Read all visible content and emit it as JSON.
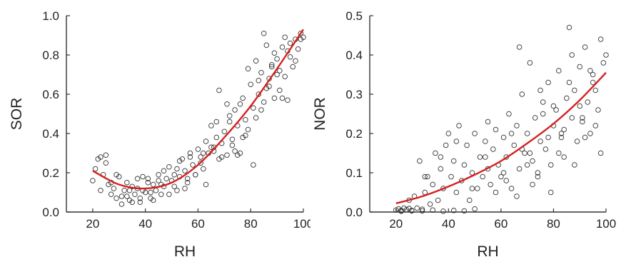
{
  "chart_data": [
    {
      "type": "scatter",
      "xlabel": "RH",
      "ylabel": "SOR",
      "xlim": [
        10,
        100
      ],
      "ylim": [
        0,
        1.0
      ],
      "xticks": [
        20,
        40,
        60,
        80,
        100
      ],
      "yticks": [
        0.0,
        0.2,
        0.4,
        0.6,
        0.8,
        1.0
      ],
      "xtick_labels": [
        "20",
        "40",
        "60",
        "80",
        "100"
      ],
      "ytick_labels": [
        "0.0",
        "0.2",
        "0.4",
        "0.6",
        "0.8",
        "1.0"
      ],
      "marker_color": "#333333",
      "fit_color": "#d62020",
      "fit": {
        "type": "quadratic",
        "x": [
          20,
          30,
          40,
          50,
          60,
          70,
          80,
          90,
          100
        ],
        "y": [
          0.21,
          0.14,
          0.12,
          0.15,
          0.24,
          0.38,
          0.54,
          0.73,
          0.93
        ]
      },
      "series": [
        {
          "x": [
            20,
            21,
            22,
            23,
            24,
            25,
            26,
            27,
            28,
            29,
            30,
            31,
            32,
            33,
            34,
            35,
            36,
            37,
            38,
            39,
            40,
            41,
            42,
            43,
            44,
            45,
            46,
            47,
            48,
            49,
            50,
            51,
            52,
            53,
            54,
            55,
            56,
            57,
            58,
            59,
            60,
            61,
            62,
            63,
            64,
            65,
            66,
            67,
            68,
            69,
            70,
            71,
            72,
            73,
            74,
            75,
            76,
            77,
            78,
            79,
            80,
            81,
            82,
            83,
            84,
            85,
            86,
            87,
            88,
            89,
            90,
            91,
            92,
            93,
            94,
            95,
            96,
            97,
            98,
            99,
            100,
            23,
            25,
            27,
            29,
            31,
            33,
            35,
            37,
            39,
            41,
            43,
            45,
            47,
            49,
            51,
            53,
            55,
            57,
            59,
            61,
            63,
            65,
            67,
            69,
            71,
            73,
            75,
            77,
            79,
            81,
            83,
            85,
            87,
            89,
            91,
            93,
            95,
            97,
            99,
            34,
            38,
            42,
            46,
            52,
            56,
            62,
            66,
            68,
            72,
            74,
            76,
            78,
            82,
            84,
            86,
            88,
            90,
            92,
            94
          ],
          "y": [
            0.16,
            0.22,
            0.27,
            0.28,
            0.19,
            0.29,
            0.14,
            0.09,
            0.12,
            0.07,
            0.18,
            0.04,
            0.11,
            0.08,
            0.06,
            0.13,
            0.09,
            0.17,
            0.05,
            0.11,
            0.1,
            0.17,
            0.07,
            0.14,
            0.11,
            0.19,
            0.09,
            0.21,
            0.17,
            0.23,
            0.16,
            0.13,
            0.22,
            0.18,
            0.27,
            0.21,
            0.15,
            0.3,
            0.24,
            0.19,
            0.32,
            0.28,
            0.22,
            0.36,
            0.3,
            0.44,
            0.31,
            0.38,
            0.62,
            0.35,
            0.41,
            0.29,
            0.49,
            0.37,
            0.52,
            0.44,
            0.3,
            0.58,
            0.47,
            0.42,
            0.65,
            0.53,
            0.77,
            0.6,
            0.71,
            0.56,
            0.85,
            0.68,
            0.74,
            0.81,
            0.78,
            0.62,
            0.84,
            0.89,
            0.57,
            0.79,
            0.74,
            0.88,
            0.83,
            0.91,
            0.89,
            0.11,
            0.25,
            0.15,
            0.19,
            0.08,
            0.15,
            0.05,
            0.12,
            0.18,
            0.15,
            0.06,
            0.16,
            0.13,
            0.09,
            0.19,
            0.26,
            0.12,
            0.28,
            0.19,
            0.25,
            0.14,
            0.33,
            0.46,
            0.28,
            0.55,
            0.34,
            0.29,
            0.38,
            0.73,
            0.24,
            0.67,
            0.91,
            0.64,
            0.58,
            0.72,
            0.69,
            0.86,
            0.77,
            0.88,
            0.11,
            0.07,
            0.1,
            0.14,
            0.11,
            0.17,
            0.3,
            0.33,
            0.27,
            0.46,
            0.31,
            0.55,
            0.39,
            0.48,
            0.52,
            0.63,
            0.75,
            0.7,
            0.58,
            0.82
          ]
        }
      ]
    },
    {
      "type": "scatter",
      "xlabel": "RH",
      "ylabel": "NOR",
      "xlim": [
        10,
        100
      ],
      "ylim": [
        0,
        0.5
      ],
      "xticks": [
        20,
        40,
        60,
        80,
        100
      ],
      "yticks": [
        0.0,
        0.1,
        0.2,
        0.3,
        0.4,
        0.5
      ],
      "xtick_labels": [
        "20",
        "40",
        "60",
        "80",
        "100"
      ],
      "ytick_labels": [
        "0.0",
        "0.1",
        "0.2",
        "0.3",
        "0.4",
        "0.5"
      ],
      "marker_color": "#333333",
      "fit_color": "#d62020",
      "fit": {
        "type": "exponential",
        "x": [
          20,
          30,
          40,
          50,
          60,
          70,
          80,
          90,
          100
        ],
        "y": [
          0.022,
          0.04,
          0.065,
          0.095,
          0.13,
          0.175,
          0.225,
          0.285,
          0.355
        ]
      },
      "series": [
        {
          "x": [
            20,
            21,
            22,
            23,
            24,
            25,
            26,
            27,
            28,
            29,
            30,
            31,
            32,
            33,
            34,
            35,
            36,
            37,
            38,
            39,
            40,
            41,
            42,
            43,
            44,
            45,
            46,
            47,
            48,
            49,
            50,
            51,
            52,
            53,
            54,
            55,
            56,
            57,
            58,
            59,
            60,
            61,
            62,
            63,
            64,
            65,
            66,
            67,
            68,
            69,
            70,
            71,
            72,
            73,
            74,
            75,
            76,
            77,
            78,
            79,
            80,
            81,
            82,
            83,
            84,
            85,
            86,
            87,
            88,
            89,
            90,
            91,
            92,
            93,
            94,
            95,
            96,
            97,
            98,
            99,
            100,
            22,
            26,
            30,
            34,
            38,
            42,
            46,
            50,
            54,
            58,
            62,
            64,
            66,
            68,
            70,
            72,
            74,
            76,
            78,
            80,
            82,
            84,
            86,
            88,
            90,
            92,
            94,
            96,
            98,
            25,
            31,
            37,
            43,
            49,
            55,
            61,
            67,
            71,
            75,
            79,
            83,
            87,
            91,
            95
          ],
          "y": [
            0.005,
            0.008,
            0.004,
            0.01,
            0.006,
            0.009,
            0.003,
            0.04,
            0.01,
            0.13,
            0.007,
            0.05,
            0.09,
            0.02,
            0.07,
            0.15,
            0.03,
            0.11,
            0.06,
            0.17,
            0.2,
            0.09,
            0.13,
            0.05,
            0.22,
            0.08,
            0.12,
            0.17,
            0.03,
            0.1,
            0.2,
            0.06,
            0.14,
            0.09,
            0.18,
            0.11,
            0.07,
            0.16,
            0.21,
            0.12,
            0.09,
            0.19,
            0.14,
            0.25,
            0.06,
            0.17,
            0.22,
            0.11,
            0.3,
            0.15,
            0.2,
            0.38,
            0.13,
            0.24,
            0.09,
            0.18,
            0.28,
            0.16,
            0.33,
            0.12,
            0.22,
            0.26,
            0.36,
            0.2,
            0.14,
            0.29,
            0.47,
            0.24,
            0.31,
            0.18,
            0.37,
            0.23,
            0.42,
            0.28,
            0.2,
            0.35,
            0.31,
            0.26,
            0.44,
            0.38,
            0.4,
            0.002,
            0.004,
            0.003,
            0.005,
            0.002,
            0.004,
            0.003,
            0.008,
            0.14,
            0.05,
            0.08,
            0.2,
            0.04,
            0.16,
            0.12,
            0.07,
            0.1,
            0.25,
            0.19,
            0.27,
            0.15,
            0.21,
            0.33,
            0.12,
            0.27,
            0.19,
            0.36,
            0.22,
            0.15,
            0.03,
            0.09,
            0.14,
            0.18,
            0.06,
            0.23,
            0.1,
            0.42,
            0.15,
            0.31,
            0.05,
            0.19,
            0.4,
            0.24,
            0.33
          ]
        }
      ]
    }
  ]
}
